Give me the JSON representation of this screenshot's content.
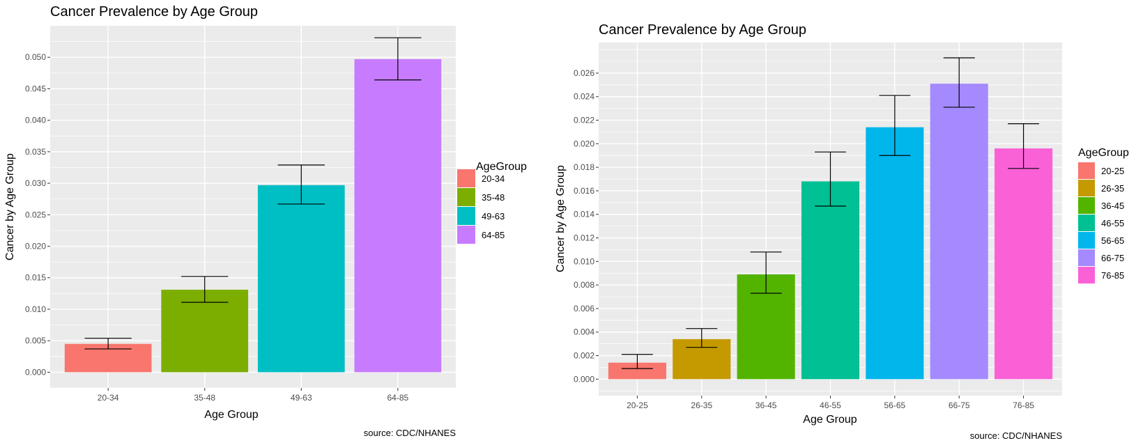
{
  "chart_data": [
    {
      "type": "bar",
      "title": "Cancer Prevalence by Age Group",
      "xlabel": "Age Group",
      "ylabel": "Cancer by Age Group",
      "caption": "source: CDC/NHANES",
      "legend_title": "AgeGroup",
      "legend_position": "right",
      "categories": [
        "20-34",
        "35-48",
        "49-63",
        "64-85"
      ],
      "values": [
        0.0045,
        0.0131,
        0.0297,
        0.0497
      ],
      "error_low": [
        0.0037,
        0.0111,
        0.0267,
        0.0464
      ],
      "error_high": [
        0.0054,
        0.0152,
        0.0329,
        0.0531
      ],
      "colors": [
        "#F8766D",
        "#7CAE00",
        "#00BFC4",
        "#C77CFF"
      ],
      "ylim": [
        -0.0025,
        0.055
      ],
      "yticks": [
        "0.000",
        "0.005",
        "0.010",
        "0.015",
        "0.020",
        "0.025",
        "0.030",
        "0.035",
        "0.040",
        "0.045",
        "0.050"
      ],
      "grid": true
    },
    {
      "type": "bar",
      "title": "Cancer Prevalence by Age Group",
      "xlabel": "Age Group",
      "ylabel": "Cancer by Age Group",
      "caption": "source: CDC/NHANES",
      "legend_title": "AgeGroup",
      "legend_position": "right",
      "categories": [
        "20-25",
        "26-35",
        "36-45",
        "46-55",
        "56-65",
        "66-75",
        "76-85"
      ],
      "values": [
        0.0014,
        0.0034,
        0.0089,
        0.0168,
        0.0214,
        0.0251,
        0.0196
      ],
      "error_low": [
        0.0009,
        0.0027,
        0.0073,
        0.0147,
        0.019,
        0.0231,
        0.0179
      ],
      "error_high": [
        0.0021,
        0.0043,
        0.0108,
        0.0193,
        0.0241,
        0.0273,
        0.0217
      ],
      "colors": [
        "#F8766D",
        "#C49A00",
        "#53B400",
        "#00C094",
        "#00B6EB",
        "#A58AFF",
        "#FB61D7"
      ],
      "ylim": [
        -0.0014,
        0.0286
      ],
      "yticks": [
        "0.000",
        "0.002",
        "0.004",
        "0.006",
        "0.008",
        "0.010",
        "0.012",
        "0.014",
        "0.016",
        "0.018",
        "0.020",
        "0.022",
        "0.024",
        "0.026"
      ],
      "grid": true
    }
  ]
}
